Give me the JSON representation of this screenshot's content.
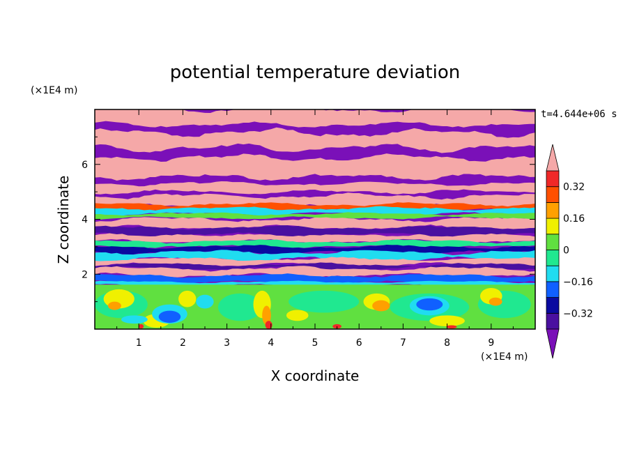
{
  "chart_data": {
    "type": "heatmap",
    "title": "potential temperature deviation",
    "xlabel": "X coordinate",
    "ylabel": "Z coordinate",
    "x_unit": "(×1E4 m)",
    "y_unit": "(×1E4 m)",
    "time_label": "t=4.644e+06 s",
    "xlim": [
      0,
      10
    ],
    "ylim": [
      0,
      8
    ],
    "x_ticks": [
      1,
      2,
      3,
      4,
      5,
      6,
      7,
      8,
      9
    ],
    "y_ticks": [
      2,
      4,
      6
    ],
    "colorbar": {
      "levels": [
        -0.48,
        -0.4,
        -0.32,
        -0.24,
        -0.16,
        -0.08,
        0,
        0.08,
        0.16,
        0.24,
        0.32,
        0.4
      ],
      "labels": [
        "0.32",
        "0.16",
        "0",
        "−0.16",
        "−0.32"
      ],
      "label_values": [
        0.32,
        0.16,
        0,
        -0.16,
        -0.32
      ],
      "colors": [
        "#7a10b8",
        "#4a10a0",
        "#0a0aa0",
        "#1060ff",
        "#20dcf0",
        "#20e890",
        "#60e040",
        "#f0f000",
        "#ffa000",
        "#ff5000",
        "#f02828",
        "#f5a8a8"
      ],
      "extend": "both"
    },
    "bands": [
      {
        "z": [
          0.0,
          1.7
        ],
        "description_free": true,
        "level": 0.04
      },
      {
        "z": [
          1.7,
          3.5
        ],
        "level": -0.2
      },
      {
        "z": [
          3.5,
          4.6
        ],
        "level": 0.1
      },
      {
        "z": [
          4.6,
          8.0
        ],
        "level": 0.44
      }
    ]
  }
}
